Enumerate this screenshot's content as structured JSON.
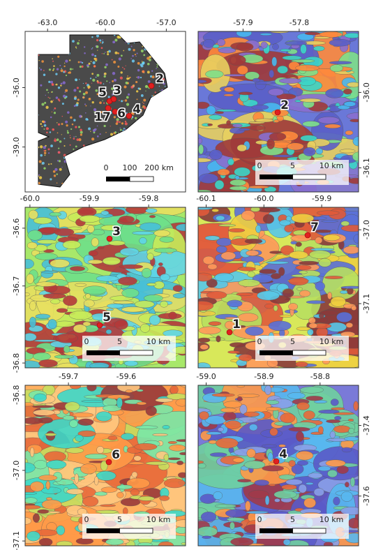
{
  "panels": [
    {
      "xticks": [
        "-63.0",
        "-60.0",
        "-57.0"
      ],
      "yticks": [
        "-36.0",
        "-39.0"
      ],
      "sites": [
        "2",
        "5",
        "3",
        "17",
        "6",
        "4"
      ],
      "scale": [
        "0",
        "100",
        "200 km"
      ]
    },
    {
      "xticks": [
        "-57.9",
        "-57.8"
      ],
      "yticks": [
        "-36.0",
        "-36.1"
      ],
      "sites": [
        "2"
      ],
      "scale": [
        "0",
        "5",
        "10 km"
      ]
    },
    {
      "xticks": [
        "-60.0",
        "-59.9",
        "-59.8"
      ],
      "yticks": [
        "-36.6",
        "-36.7",
        "-36.8"
      ],
      "sites": [
        "3",
        "5"
      ],
      "scale": [
        "0",
        "5",
        "10 km"
      ]
    },
    {
      "xticks": [
        "-60.1",
        "-60.0",
        "-59.9"
      ],
      "yticks": [
        "-37.0",
        "-37.1"
      ],
      "sites": [
        "7",
        "1"
      ],
      "scale": [
        "0",
        "5",
        "10 km"
      ]
    },
    {
      "xticks": [
        "-59.7",
        "-59.6"
      ],
      "yticks": [
        "-36.8",
        "-37.0",
        "-37.1"
      ],
      "sites": [
        "6"
      ],
      "scale": [
        "0",
        "5",
        "10 km"
      ]
    },
    {
      "xticks": [
        "-59.0",
        "-58.9",
        "-58.8"
      ],
      "yticks": [
        "-37.4",
        "-37.6"
      ],
      "sites": [
        "4"
      ],
      "scale": [
        "0",
        "5",
        "10 km"
      ]
    }
  ]
}
